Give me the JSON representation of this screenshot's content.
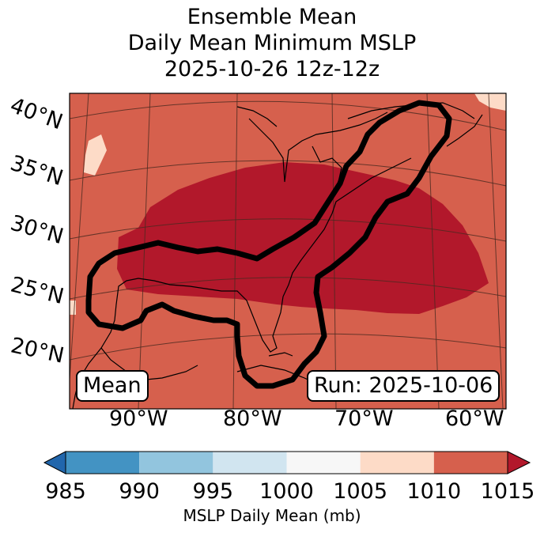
{
  "title": {
    "line1": "Ensemble Mean",
    "line2": "Daily Mean Minimum MSLP",
    "line3": "2025-10-26 12z-12z"
  },
  "map": {
    "lat_labels": [
      "40°N",
      "35°N",
      "30°N",
      "25°N",
      "20°N"
    ],
    "lon_labels": [
      "90°W",
      "80°W",
      "70°W",
      "60°W"
    ],
    "mean_label": "Mean",
    "run_label": "Run: 2025-10-06",
    "field_colors": {
      "above_1010": "#d6604d",
      "below_1010": "#b2182b",
      "above_1015": "#fddbc7"
    },
    "contour_color": "#000000"
  },
  "colorbar": {
    "ticks": [
      "985",
      "990",
      "995",
      "1000",
      "1005",
      "1010",
      "1015"
    ],
    "colors": [
      "#2166ac",
      "#4393c3",
      "#92c5de",
      "#d1e5f0",
      "#f7f7f7",
      "#fddbc7",
      "#d6604d",
      "#b2182b"
    ],
    "label": "MSLP Daily Mean (mb)"
  }
}
